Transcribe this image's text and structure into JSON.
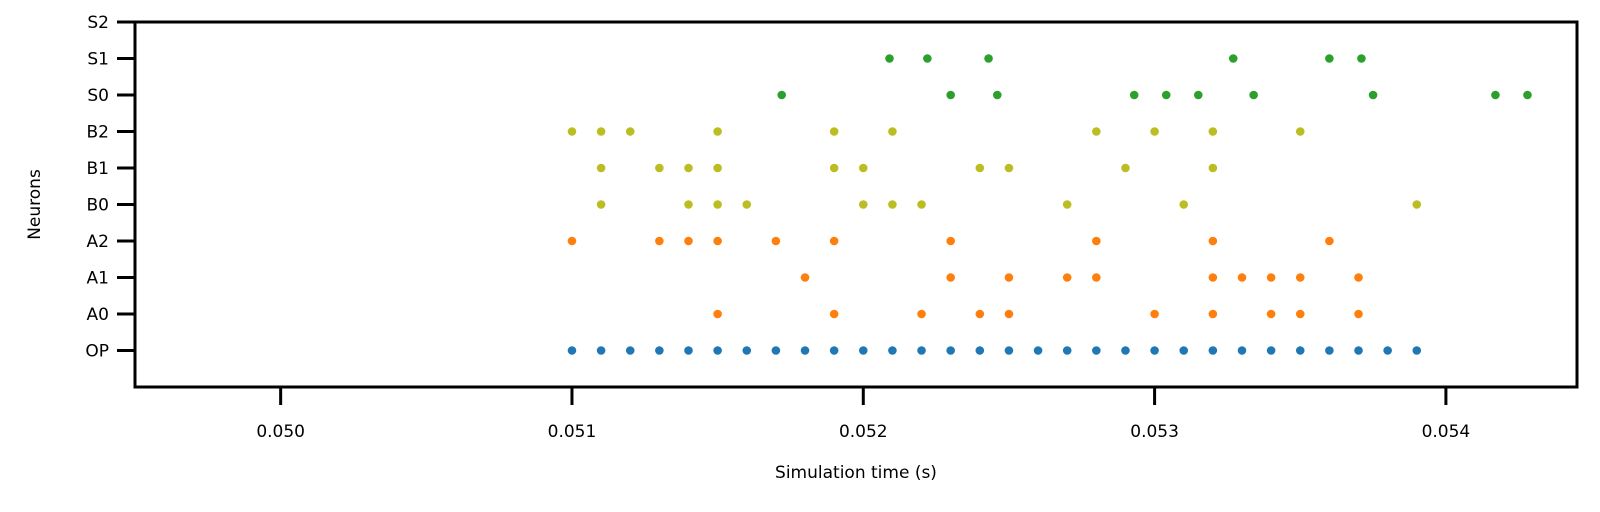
{
  "chart_data": {
    "type": "scatter",
    "title": "",
    "xlabel": "Simulation time (s)",
    "ylabel": "Neurons",
    "xlim": [
      0.0495,
      0.05445
    ],
    "ylim": [
      -1.0,
      9.0
    ],
    "x_ticks": [
      0.05,
      0.051,
      0.052,
      0.053,
      0.054
    ],
    "x_tick_labels": [
      "0.050",
      "0.051",
      "0.052",
      "0.053",
      "0.054"
    ],
    "y_categories": [
      "OP",
      "A0",
      "A1",
      "A2",
      "B0",
      "B1",
      "B2",
      "S0",
      "S1",
      "S2"
    ],
    "grid": false,
    "legend": "none",
    "series": [
      {
        "color": "#1f77b4",
        "rows": [
          {
            "y": "OP",
            "x": [
              0.051,
              0.0511,
              0.0512,
              0.0513,
              0.0514,
              0.0515,
              0.0516,
              0.0517,
              0.0518,
              0.0519,
              0.052,
              0.0521,
              0.0522,
              0.0523,
              0.0524,
              0.0525,
              0.0526,
              0.0527,
              0.0528,
              0.0529,
              0.053,
              0.0531,
              0.0532,
              0.0533,
              0.0534,
              0.0535,
              0.0536,
              0.0537,
              0.0538,
              0.0539
            ]
          }
        ]
      },
      {
        "color": "#ff7f0e",
        "rows": [
          {
            "y": "A0",
            "x": [
              0.0515,
              0.0519,
              0.0522,
              0.0524,
              0.0525,
              0.053,
              0.0532,
              0.0534,
              0.0535,
              0.0537
            ]
          },
          {
            "y": "A1",
            "x": [
              0.0518,
              0.0523,
              0.0525,
              0.0527,
              0.0528,
              0.0532,
              0.0533,
              0.0534,
              0.0535,
              0.0537
            ]
          },
          {
            "y": "A2",
            "x": [
              0.051,
              0.0513,
              0.0514,
              0.0515,
              0.0517,
              0.0519,
              0.0523,
              0.0528,
              0.0532,
              0.0536
            ]
          }
        ]
      },
      {
        "color": "#bcbd22",
        "rows": [
          {
            "y": "B0",
            "x": [
              0.0511,
              0.0514,
              0.0515,
              0.0516,
              0.052,
              0.0521,
              0.0522,
              0.0527,
              0.0531,
              0.0539
            ]
          },
          {
            "y": "B1",
            "x": [
              0.0511,
              0.0513,
              0.0514,
              0.0515,
              0.0519,
              0.052,
              0.0524,
              0.0525,
              0.0529,
              0.0532
            ]
          },
          {
            "y": "B2",
            "x": [
              0.051,
              0.0511,
              0.0512,
              0.0515,
              0.0519,
              0.0521,
              0.0528,
              0.053,
              0.0532,
              0.0535
            ]
          }
        ]
      },
      {
        "color": "#2ca02c",
        "rows": [
          {
            "y": "S0",
            "x": [
              0.05172,
              0.0523,
              0.05246,
              0.05293,
              0.05304,
              0.05315,
              0.05334,
              0.05375,
              0.05417,
              0.05428
            ]
          },
          {
            "y": "S1",
            "x": [
              0.05209,
              0.05222,
              0.05243,
              0.05327,
              0.0536,
              0.05371
            ]
          },
          {
            "y": "S2",
            "x": []
          }
        ]
      }
    ]
  }
}
